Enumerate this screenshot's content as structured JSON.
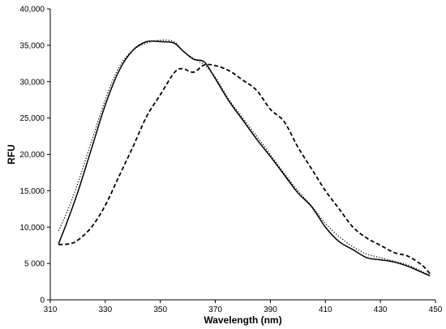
{
  "chart_data": {
    "type": "line",
    "xlabel": "Wavelength (nm)",
    "ylabel": "RFU",
    "xlim": [
      310,
      450
    ],
    "ylim": [
      0,
      40000
    ],
    "x_ticks": [
      310,
      330,
      350,
      370,
      390,
      410,
      430,
      450
    ],
    "y_ticks": [
      0,
      5000,
      10000,
      15000,
      20000,
      25000,
      30000,
      35000,
      40000
    ],
    "x_tick_labels": [
      "310",
      "330",
      "350",
      "370",
      "390",
      "410",
      "430",
      "450"
    ],
    "y_tick_labels": [
      "0",
      "5 000",
      "10,000",
      "15,000",
      "20,000",
      "25,000",
      "30,000",
      "35,000",
      "40,000"
    ],
    "grid": false,
    "legend": "none",
    "series": [
      {
        "style": "solid",
        "color": "#000000",
        "x": [
          313,
          316,
          320,
          325,
          330,
          335,
          340,
          345,
          350,
          355,
          358,
          362,
          366,
          370,
          375,
          380,
          385,
          390,
          395,
          400,
          405,
          410,
          415,
          420,
          425,
          430,
          435,
          440,
          445,
          448
        ],
        "y": [
          7700,
          10600,
          14800,
          20800,
          26800,
          31500,
          34300,
          35500,
          35500,
          35300,
          34300,
          33100,
          32700,
          30400,
          27300,
          24700,
          22100,
          19700,
          17200,
          14700,
          12800,
          10000,
          8000,
          6900,
          5800,
          5500,
          5200,
          4600,
          3800,
          3300
        ]
      },
      {
        "style": "dotted",
        "color": "#000000",
        "x": [
          313,
          316,
          320,
          325,
          330,
          335,
          340,
          345,
          350,
          355,
          358,
          362,
          366,
          370,
          375,
          380,
          385,
          390,
          395,
          400,
          405,
          410,
          415,
          420,
          425,
          430,
          435,
          440,
          445,
          448
        ],
        "y": [
          9500,
          12000,
          16000,
          21800,
          27500,
          32000,
          34300,
          35300,
          35700,
          35500,
          34300,
          33200,
          32300,
          30600,
          27500,
          25000,
          22500,
          20000,
          17400,
          15000,
          12900,
          10500,
          8700,
          7300,
          6300,
          5800,
          5300,
          4800,
          3900,
          3400
        ]
      },
      {
        "style": "dashed",
        "color": "#000000",
        "x": [
          313,
          317,
          320,
          325,
          330,
          335,
          340,
          345,
          350,
          355,
          358,
          362,
          366,
          370,
          375,
          380,
          385,
          390,
          395,
          400,
          405,
          410,
          415,
          420,
          425,
          430,
          435,
          440,
          445,
          448
        ],
        "y": [
          7600,
          7700,
          8200,
          10000,
          13000,
          17000,
          21000,
          25200,
          28200,
          31200,
          31800,
          31300,
          32300,
          32200,
          31500,
          30200,
          28800,
          26200,
          24500,
          21000,
          18000,
          15000,
          12500,
          10000,
          8500,
          7500,
          6500,
          6000,
          4800,
          3600
        ]
      }
    ]
  }
}
